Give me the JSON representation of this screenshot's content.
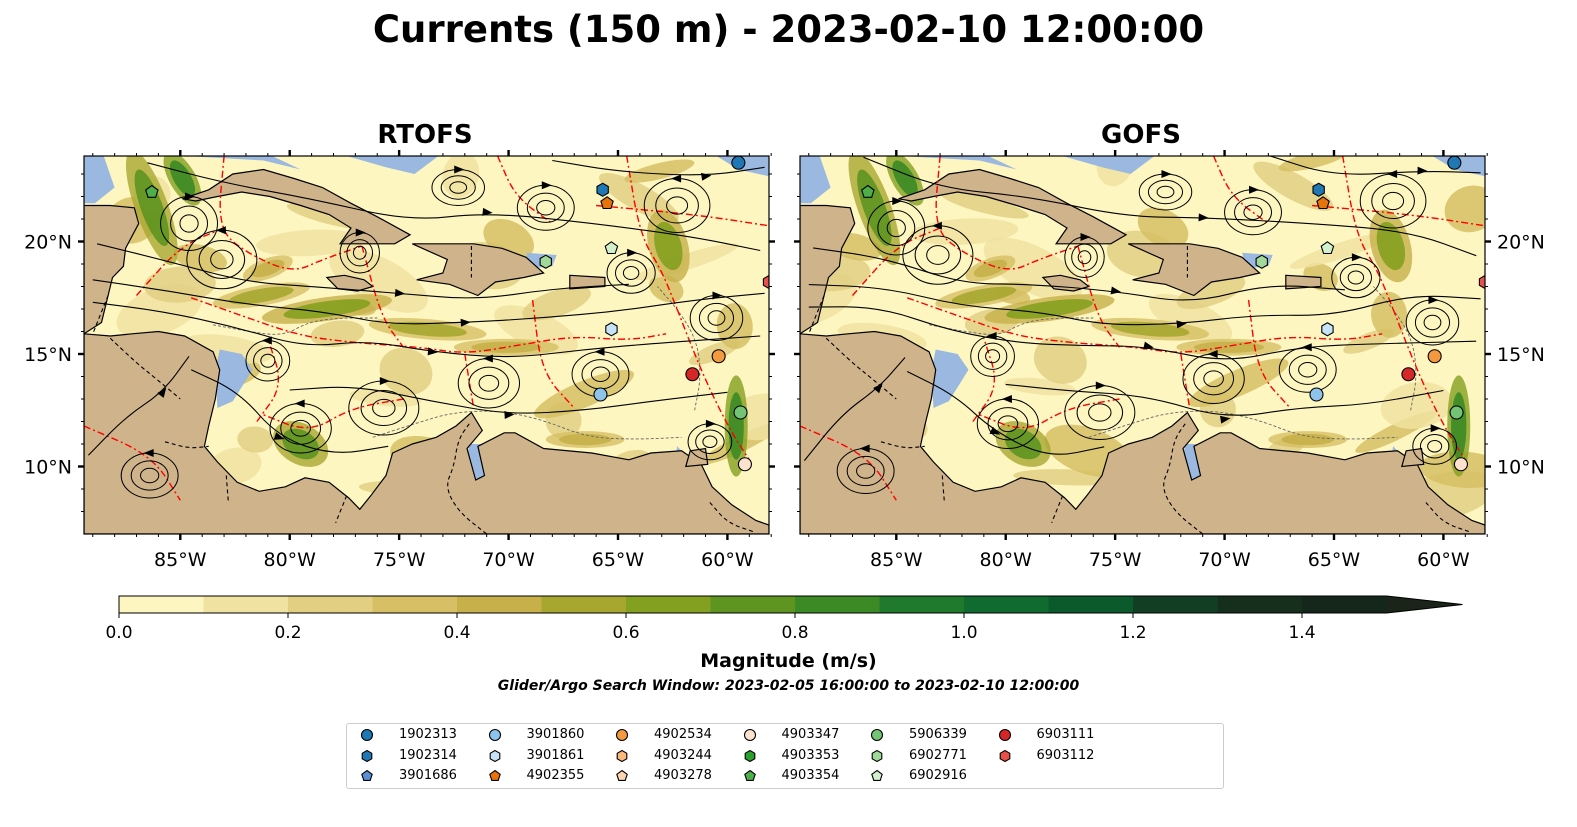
{
  "title": "Currents (150 m) - 2023-02-10 12:00:00",
  "panels": [
    {
      "title": "RTOFS"
    },
    {
      "title": "GOFS"
    }
  ],
  "x_ticks": [
    "85°W",
    "80°W",
    "75°W",
    "70°W",
    "65°W",
    "60°W"
  ],
  "y_ticks": [
    "20°N",
    "15°N",
    "10°N"
  ],
  "colorbar": {
    "label": "Magnitude (m/s)",
    "ticks": [
      "0.0",
      "0.2",
      "0.4",
      "0.6",
      "0.8",
      "1.0",
      "1.2",
      "1.4"
    ],
    "colors": [
      "#fdf6c0",
      "#f0e2a0",
      "#e2cf82",
      "#d6bf64",
      "#c7b04a",
      "#a7a730",
      "#84a020",
      "#5e9420",
      "#3c8a25",
      "#1f7a2d",
      "#0f6b30",
      "#0b5a2c",
      "#123f23",
      "#162f1d",
      "#15261a",
      "#1a2418"
    ]
  },
  "subtitle": "Glider/Argo Search Window: 2023-02-05 16:00:00 to 2023-02-10 12:00:00",
  "legend": [
    {
      "label": "1902313",
      "color": "#1f77b4",
      "marker": "circle"
    },
    {
      "label": "1902314",
      "color": "#1f77b4",
      "marker": "hexagon"
    },
    {
      "label": "3901686",
      "color": "#5a8fd4",
      "marker": "pentagon"
    },
    {
      "label": "3901860",
      "color": "#8ec4ec",
      "marker": "circle"
    },
    {
      "label": "3901861",
      "color": "#c6e3f8",
      "marker": "hexagon"
    },
    {
      "label": "4902355",
      "color": "#e8730c",
      "marker": "pentagon"
    },
    {
      "label": "4902534",
      "color": "#f39a40",
      "marker": "circle"
    },
    {
      "label": "4903244",
      "color": "#fbb87a",
      "marker": "hexagon"
    },
    {
      "label": "4903278",
      "color": "#fdd4ad",
      "marker": "pentagon"
    },
    {
      "label": "4903347",
      "color": "#fde3cf",
      "marker": "circle"
    },
    {
      "label": "4903353",
      "color": "#2ca02c",
      "marker": "hexagon"
    },
    {
      "label": "4903354",
      "color": "#4dae4a",
      "marker": "pentagon"
    },
    {
      "label": "5906339",
      "color": "#74c476",
      "marker": "circle"
    },
    {
      "label": "6902771",
      "color": "#a1d99b",
      "marker": "hexagon"
    },
    {
      "label": "6902916",
      "color": "#d2f0cc",
      "marker": "pentagon"
    },
    {
      "label": "6903111",
      "color": "#d62728",
      "marker": "circle"
    },
    {
      "label": "6903112",
      "color": "#e8504a",
      "marker": "hexagon"
    }
  ],
  "floats": [
    {
      "id": "1902313",
      "lon": -59.5,
      "lat": 23.5
    },
    {
      "id": "1902314",
      "lon": -65.7,
      "lat": 22.3
    },
    {
      "id": "3901860",
      "lon": -65.8,
      "lat": 13.2
    },
    {
      "id": "3901861",
      "lon": -65.3,
      "lat": 16.1
    },
    {
      "id": "4902355",
      "lon": -65.5,
      "lat": 21.7
    },
    {
      "id": "4902534",
      "lon": -60.4,
      "lat": 14.9
    },
    {
      "id": "4903347",
      "lon": -59.2,
      "lat": 10.1
    },
    {
      "id": "4903354",
      "lon": -86.3,
      "lat": 22.2
    },
    {
      "id": "5906339",
      "lon": -59.4,
      "lat": 12.4
    },
    {
      "id": "6902771",
      "lon": -68.3,
      "lat": 19.1
    },
    {
      "id": "6902916",
      "lon": -65.3,
      "lat": 19.7
    },
    {
      "id": "6903111",
      "lon": -61.6,
      "lat": 14.1
    },
    {
      "id": "6903112",
      "lon": -58.1,
      "lat": 18.2
    }
  ],
  "colors": {
    "land": "#cfb38a",
    "ocean_shallow": "#9ab8e0",
    "eez_line": "#ff0000"
  }
}
